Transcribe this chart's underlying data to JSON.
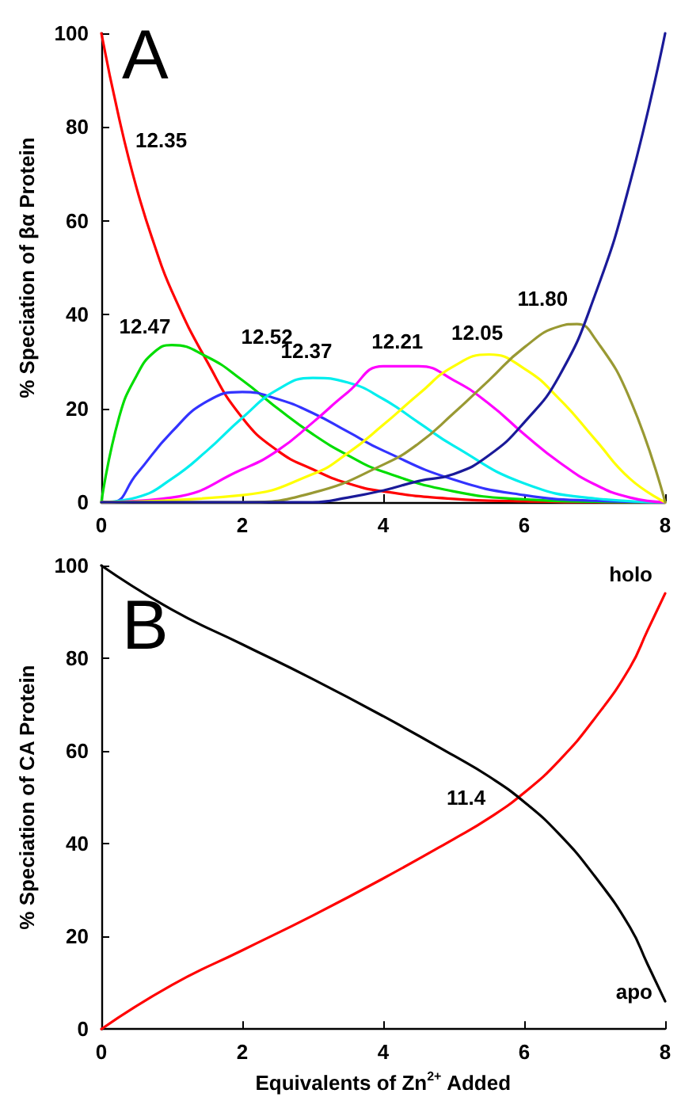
{
  "chart_data": [
    {
      "type": "line",
      "title": "A",
      "ylabel": "% Speciation of βα Protein",
      "xlim": [
        0,
        8
      ],
      "xticks": [
        0,
        2,
        4,
        6,
        8
      ],
      "ylim": [
        0,
        100
      ],
      "yticks": [
        0,
        20,
        40,
        60,
        80,
        100
      ],
      "grid": false,
      "legend": false,
      "marker": "none",
      "line_style": "solid",
      "annotations": [
        {
          "text": "12.35",
          "x": 0.4,
          "y": 68
        },
        {
          "text": "12.47",
          "x": 1.0,
          "y": 33.5
        },
        {
          "text": "12.52",
          "x": 1.9,
          "y": 23.5
        },
        {
          "text": "12.37",
          "x": 3.0,
          "y": 26.5
        },
        {
          "text": "12.21",
          "x": 4.2,
          "y": 29.5
        },
        {
          "text": "12.05",
          "x": 5.4,
          "y": 31.5
        },
        {
          "text": "11.80",
          "x": 6.6,
          "y": 38
        }
      ],
      "series": [
        {
          "color": "#ff0000",
          "x": [
            0,
            0.25,
            0.5,
            0.75,
            1,
            1.5,
            2,
            2.5,
            3,
            3.5,
            4,
            5,
            6,
            7,
            8
          ],
          "values": [
            100,
            82,
            67,
            55,
            45,
            30,
            18,
            11,
            7,
            4,
            2.3,
            0.7,
            0.2,
            0,
            0
          ]
        },
        {
          "color": "#00dd00",
          "x": [
            0,
            0.25,
            0.5,
            0.75,
            1,
            1.5,
            2,
            2.5,
            3,
            3.5,
            4,
            5,
            6,
            7,
            8
          ],
          "values": [
            0,
            18,
            27,
            32,
            33.5,
            31,
            26,
            20,
            14.5,
            10,
            6.5,
            2.3,
            0.6,
            0.1,
            0
          ]
        },
        {
          "color": "#3333ff",
          "x": [
            0,
            0.15,
            0.5,
            1,
            1.5,
            2,
            2.5,
            3,
            3.5,
            4,
            5,
            6,
            7,
            8
          ],
          "values": [
            0,
            0,
            6,
            15,
            21.5,
            23.5,
            22,
            19,
            15,
            11,
            4.8,
            1.5,
            0.3,
            0
          ]
        },
        {
          "color": "#00eeee",
          "x": [
            0,
            0.5,
            1,
            1.5,
            2,
            2.5,
            3,
            3.5,
            4,
            4.5,
            5,
            6,
            7,
            8
          ],
          "values": [
            0,
            1,
            5,
            11,
            18,
            24,
            26.5,
            25.5,
            22,
            17,
            12,
            4,
            0.8,
            0
          ]
        },
        {
          "color": "#ff00ff",
          "x": [
            0,
            1,
            2,
            2.5,
            3,
            3.5,
            4,
            4.5,
            5,
            5.5,
            6,
            6.5,
            7,
            7.5,
            8
          ],
          "values": [
            0,
            1,
            7,
            11,
            17,
            23.5,
            29,
            29,
            26,
            21,
            14.5,
            8.5,
            3.8,
            1,
            0
          ]
        },
        {
          "color": "#ffff00",
          "x": [
            0,
            2,
            3,
            3.5,
            4,
            4.5,
            5,
            5.5,
            6,
            6.5,
            7,
            7.5,
            8
          ],
          "values": [
            0,
            1.5,
            6,
            10.5,
            16.5,
            23,
            29,
            31.5,
            28.5,
            22,
            13.5,
            5,
            0
          ]
        },
        {
          "color": "#999933",
          "x": [
            0,
            2,
            3,
            4,
            4.5,
            5,
            5.5,
            6,
            6.5,
            6.75,
            7,
            7.5,
            8
          ],
          "values": [
            0,
            0,
            2,
            8,
            12.5,
            19,
            26,
            33,
            37.5,
            38,
            35,
            22,
            0
          ]
        },
        {
          "color": "#1a1a99",
          "x": [
            0,
            3,
            3.5,
            4,
            4.5,
            5,
            5.5,
            6,
            6.5,
            7,
            7.5,
            8
          ],
          "values": [
            0,
            0,
            1,
            2.5,
            4.5,
            6,
            10,
            17,
            27,
            44,
            68,
            100
          ]
        }
      ]
    },
    {
      "type": "line",
      "title": "B",
      "xlabel": "Equivalents of Zn$^{2+}$ Added",
      "ylabel": "% Speciation of CA Protein",
      "xlim": [
        0,
        8
      ],
      "xticks": [
        0,
        2,
        4,
        6,
        8
      ],
      "ylim": [
        0,
        100
      ],
      "yticks": [
        0,
        20,
        40,
        60,
        80,
        100
      ],
      "grid": false,
      "legend": false,
      "marker": "none",
      "line_style": "solid",
      "annotations": [
        {
          "text": "11.4",
          "x": 5.85,
          "y": 50
        }
      ],
      "series": [
        {
          "name": "holo",
          "color": "#ff0000",
          "x": [
            0,
            1,
            2,
            3,
            4,
            5,
            5.5,
            6,
            6.5,
            7,
            7.5,
            7.75,
            8
          ],
          "values": [
            0,
            9.5,
            17,
            24.5,
            32.5,
            41,
            45.5,
            51,
            58,
            67,
            78,
            86,
            94
          ]
        },
        {
          "name": "apo",
          "color": "#000000",
          "x": [
            0,
            1,
            2,
            3,
            4,
            5,
            5.5,
            6,
            6.5,
            7,
            7.5,
            7.75,
            8
          ],
          "values": [
            100,
            90.5,
            83,
            75.5,
            67.5,
            59,
            54.5,
            49,
            42,
            33,
            22,
            14,
            6
          ]
        }
      ]
    }
  ]
}
